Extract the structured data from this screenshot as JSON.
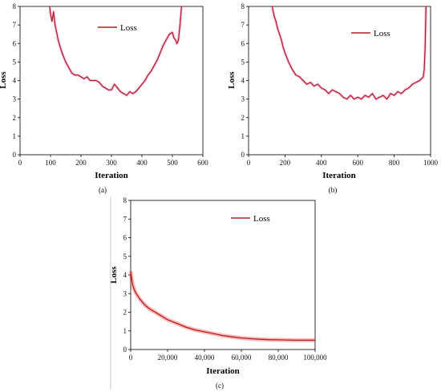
{
  "chart_data": [
    {
      "type": "line",
      "panel_label": "(a)",
      "xlabel": "Iteration",
      "ylabel": "Loss",
      "xlim": [
        0,
        600
      ],
      "ylim": [
        0,
        8
      ],
      "x_ticks": [
        "0",
        "100",
        "200",
        "300",
        "400",
        "500",
        "600"
      ],
      "y_ticks": [
        "0",
        "1",
        "2",
        "3",
        "4",
        "5",
        "6",
        "7",
        "8"
      ],
      "legend_position": "top-right",
      "series": [
        {
          "name": "Loss",
          "color": "#b22222",
          "shadow_color": "#ff66cc",
          "x": [
            97,
            100,
            105,
            110,
            115,
            120,
            125,
            130,
            140,
            150,
            160,
            170,
            180,
            190,
            200,
            210,
            220,
            230,
            240,
            250,
            260,
            270,
            280,
            290,
            300,
            310,
            320,
            330,
            340,
            350,
            360,
            370,
            380,
            390,
            400,
            410,
            420,
            430,
            440,
            450,
            460,
            470,
            480,
            490,
            500,
            505,
            510,
            515,
            520,
            525,
            530
          ],
          "y": [
            8.0,
            7.6,
            7.2,
            7.7,
            7.0,
            6.6,
            6.2,
            5.9,
            5.4,
            5.0,
            4.7,
            4.4,
            4.3,
            4.3,
            4.2,
            4.1,
            4.2,
            4.0,
            4.0,
            4.0,
            3.9,
            3.7,
            3.6,
            3.5,
            3.5,
            3.8,
            3.6,
            3.4,
            3.3,
            3.2,
            3.4,
            3.3,
            3.4,
            3.6,
            3.8,
            4.0,
            4.3,
            4.5,
            4.8,
            5.1,
            5.5,
            5.9,
            6.2,
            6.5,
            6.6,
            6.3,
            6.2,
            6.0,
            6.2,
            7.0,
            8.0
          ]
        }
      ]
    },
    {
      "type": "line",
      "panel_label": "(b)",
      "xlabel": "Iteration",
      "ylabel": "Loss",
      "xlim": [
        0,
        1000
      ],
      "ylim": [
        0,
        8
      ],
      "x_ticks": [
        "0",
        "200",
        "400",
        "600",
        "800",
        "1000"
      ],
      "y_ticks": [
        "0",
        "1",
        "2",
        "3",
        "4",
        "5",
        "6",
        "7",
        "8"
      ],
      "legend_position": "top-right",
      "series": [
        {
          "name": "Loss",
          "color": "#b22222",
          "shadow_color": "#ff66cc",
          "x": [
            130,
            140,
            150,
            160,
            170,
            180,
            190,
            200,
            220,
            240,
            260,
            280,
            300,
            320,
            340,
            360,
            380,
            400,
            420,
            440,
            460,
            480,
            500,
            520,
            540,
            560,
            580,
            600,
            620,
            640,
            660,
            680,
            700,
            720,
            740,
            760,
            780,
            800,
            820,
            840,
            860,
            880,
            900,
            920,
            940,
            950,
            960,
            965,
            970,
            975
          ],
          "y": [
            8.0,
            7.5,
            7.2,
            6.8,
            6.5,
            6.2,
            5.8,
            5.5,
            5.0,
            4.6,
            4.3,
            4.2,
            4.0,
            3.8,
            3.9,
            3.7,
            3.8,
            3.6,
            3.5,
            3.3,
            3.5,
            3.4,
            3.3,
            3.1,
            3.0,
            3.2,
            3.0,
            3.1,
            3.0,
            3.2,
            3.1,
            3.3,
            3.0,
            3.1,
            3.2,
            3.0,
            3.3,
            3.2,
            3.4,
            3.3,
            3.5,
            3.6,
            3.8,
            3.9,
            4.0,
            4.1,
            4.2,
            4.6,
            5.8,
            8.0
          ]
        }
      ]
    },
    {
      "type": "line",
      "panel_label": "(c)",
      "xlabel": "Iteration",
      "ylabel": "Loss",
      "xlim": [
        0,
        100000
      ],
      "ylim": [
        0,
        8
      ],
      "x_ticks": [
        "0",
        "20,000",
        "40,000",
        "60,000",
        "80,000",
        "100,000"
      ],
      "y_ticks": [
        "0",
        "1",
        "2",
        "3",
        "4",
        "5",
        "6",
        "7",
        "8"
      ],
      "legend_position": "top-right",
      "series": [
        {
          "name": "Loss",
          "color": "#b22222",
          "shadow_color": "#ff3333",
          "x": [
            0,
            500,
            1000,
            2000,
            3000,
            5000,
            7500,
            10000,
            15000,
            20000,
            25000,
            30000,
            35000,
            40000,
            45000,
            50000,
            55000,
            60000,
            65000,
            70000,
            75000,
            80000,
            85000,
            90000,
            95000,
            100000
          ],
          "y": [
            4.2,
            3.8,
            3.5,
            3.2,
            3.0,
            2.7,
            2.4,
            2.2,
            1.9,
            1.6,
            1.4,
            1.2,
            1.05,
            0.95,
            0.85,
            0.75,
            0.68,
            0.62,
            0.58,
            0.55,
            0.53,
            0.52,
            0.51,
            0.5,
            0.5,
            0.5
          ]
        }
      ]
    }
  ]
}
